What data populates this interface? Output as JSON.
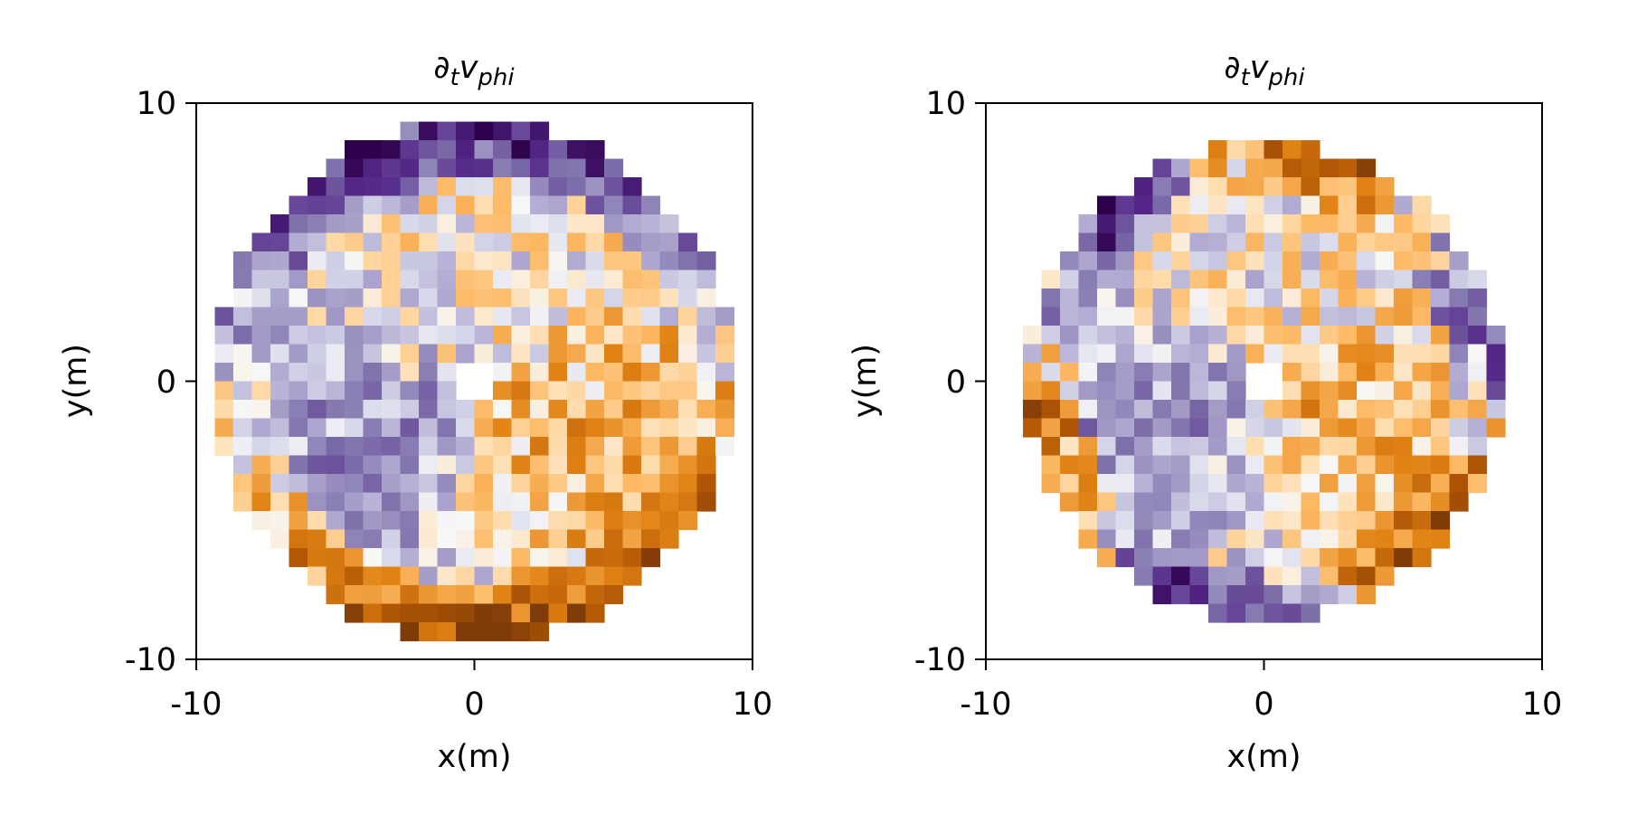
{
  "chart_data": [
    {
      "type": "heatmap",
      "title": "∂",
      "title_sub_t": "t",
      "title_var": "v",
      "title_sub_var": "phi",
      "xlabel": "x(m)",
      "ylabel": "y(m)",
      "xlim": [
        -10,
        10
      ],
      "ylim": [
        -10,
        10
      ],
      "xticks": [
        -10,
        0,
        10
      ],
      "yticks": [
        -10,
        0,
        10
      ],
      "xtick_labels": [
        "-10",
        "0",
        "10"
      ],
      "ytick_labels": [
        "-10",
        "0",
        "10"
      ],
      "grid": false,
      "colormap": "PuOr",
      "value_range": [
        -1,
        1
      ],
      "cell_size_m": 0.6667,
      "domain_radius_m": 9.4,
      "inner_hole_radius_m": 0.8,
      "grid_rows": 30,
      "grid_cols": 30,
      "seed": 12345,
      "rim_pattern": "purple-top-orange-bottom",
      "values": []
    },
    {
      "type": "heatmap",
      "title": "∂",
      "title_sub_t": "t",
      "title_var": "v",
      "title_sub_var": "phi",
      "xlabel": "x(m)",
      "ylabel": "y(m)",
      "xlim": [
        -10,
        10
      ],
      "ylim": [
        -10,
        10
      ],
      "xticks": [
        -10,
        0,
        10
      ],
      "yticks": [
        -10,
        0,
        10
      ],
      "xtick_labels": [
        "-10",
        "0",
        "10"
      ],
      "ytick_labels": [
        "-10",
        "0",
        "10"
      ],
      "grid": false,
      "colormap": "PuOr",
      "value_range": [
        -1,
        1
      ],
      "cell_size_m": 0.6667,
      "domain_radius_m": 8.5,
      "inner_hole_radius_m": 0.8,
      "grid_rows": 30,
      "grid_cols": 30,
      "seed": 67890,
      "rim_pattern": "mixed",
      "values": []
    }
  ]
}
